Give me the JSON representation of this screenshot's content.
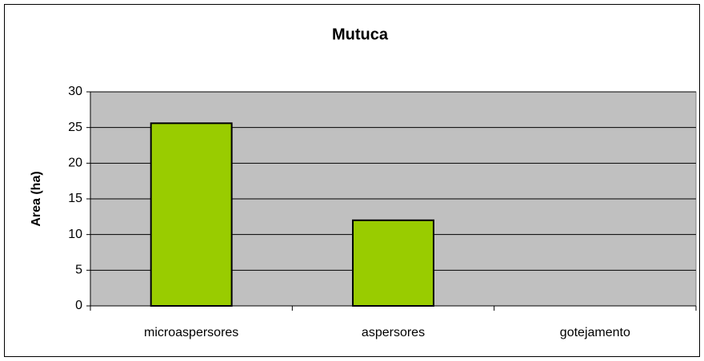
{
  "chart_data": {
    "type": "bar",
    "title": "Mutuca",
    "ylabel": "Area (ha)",
    "categories": [
      "microaspersores",
      "aspersores",
      "gotejamento"
    ],
    "values": [
      25.6,
      12,
      0
    ],
    "color": "#99cc00",
    "ylim": [
      0,
      30
    ],
    "yticks": [
      0,
      5,
      10,
      15,
      20,
      25,
      30
    ],
    "grid": true
  }
}
